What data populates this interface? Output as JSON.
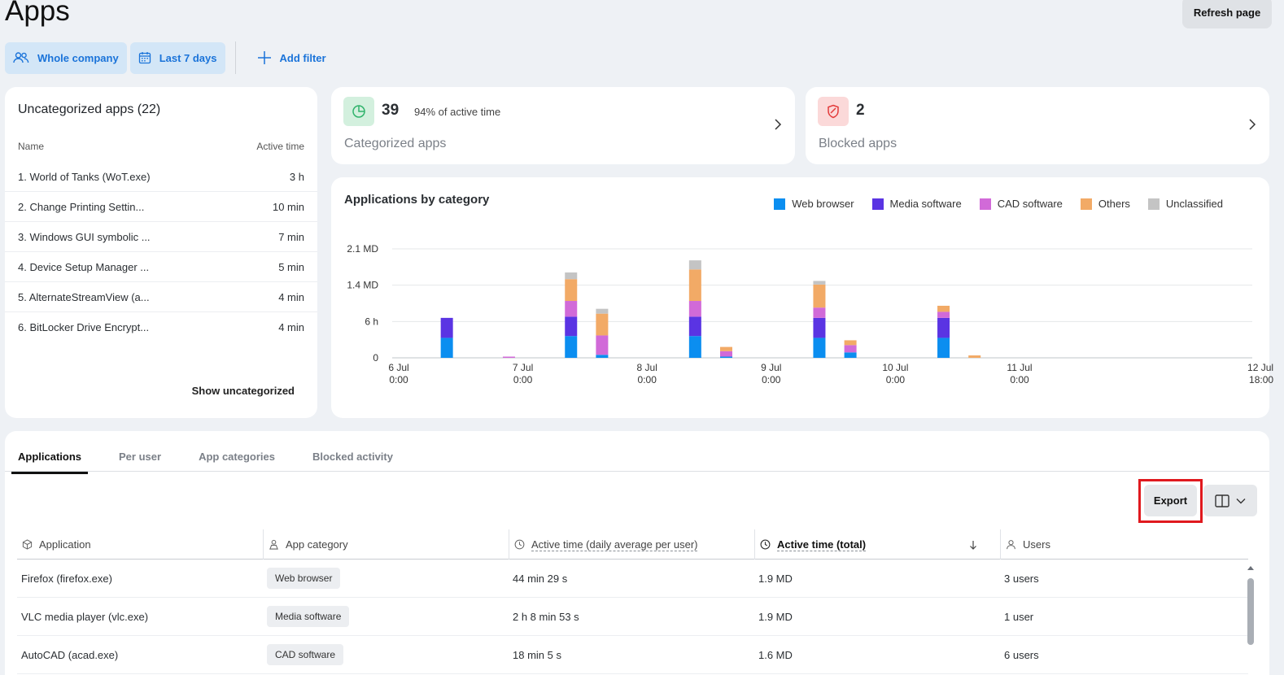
{
  "header": {
    "title": "Apps",
    "refresh_label": "Refresh page"
  },
  "filters": {
    "company_label": "Whole company",
    "period_label": "Last 7 days",
    "add_filter_label": "Add filter"
  },
  "uncategorized": {
    "title": "Uncategorized apps (22)",
    "col_name": "Name",
    "col_active": "Active time",
    "rows": [
      {
        "name": "1. World of Tanks (WoT.exe)",
        "time": "3 h"
      },
      {
        "name": "2. Change Printing Settin...",
        "time": "10 min"
      },
      {
        "name": "3. Windows GUI symbolic ...",
        "time": "7 min"
      },
      {
        "name": "4. Device Setup Manager ...",
        "time": "5 min"
      },
      {
        "name": "5. AlternateStreamView (a...",
        "time": "4 min"
      },
      {
        "name": "6. BitLocker Drive Encrypt...",
        "time": "4 min"
      }
    ],
    "show_label": "Show uncategorized"
  },
  "categorized": {
    "count": "39",
    "sub": "94% of active time",
    "label": "Categorized apps",
    "icon": "pie-chart-icon",
    "accent": "#2fb36b"
  },
  "blocked": {
    "count": "2",
    "label": "Blocked apps",
    "icon": "shield-icon",
    "accent": "#e33b3b"
  },
  "chart_data": {
    "type": "bar",
    "title": "Applications by category",
    "stacked": true,
    "legend_position": "top-right",
    "grid": true,
    "y_ticks": [
      "0",
      "6 h",
      "1.4 MD",
      "2.1 MD"
    ],
    "y_tick_hours": [
      0,
      6,
      12,
      18
    ],
    "ylim_hours": [
      0,
      18
    ],
    "x_ticks": [
      {
        "line1": "6 Jul",
        "line2": "0:00"
      },
      {
        "line1": "7 Jul",
        "line2": "0:00"
      },
      {
        "line1": "8 Jul",
        "line2": "0:00"
      },
      {
        "line1": "9 Jul",
        "line2": "0:00"
      },
      {
        "line1": "10 Jul",
        "line2": "0:00"
      },
      {
        "line1": "11 Jul",
        "line2": "0:00"
      },
      {
        "line1": "12 Jul",
        "line2": "18:00"
      }
    ],
    "x_tick_days": [
      0,
      1,
      2,
      3,
      4,
      5,
      6.75
    ],
    "series": [
      {
        "name": "Web browser",
        "color": "#0b8ef0"
      },
      {
        "name": "Media software",
        "color": "#5a34e3"
      },
      {
        "name": "CAD software",
        "color": "#d16ad8"
      },
      {
        "name": "Others",
        "color": "#f2aa66"
      },
      {
        "name": "Unclassified",
        "color": "#c4c4c4"
      }
    ],
    "bars": [
      {
        "day": 0.25,
        "values": [
          3.3,
          3.3,
          0,
          0,
          0
        ]
      },
      {
        "day": 0.75,
        "values": [
          0,
          0,
          0.2,
          0,
          0
        ]
      },
      {
        "day": 1.25,
        "values": [
          3.6,
          3.2,
          2.6,
          3.6,
          1.1
        ]
      },
      {
        "day": 1.5,
        "values": [
          0.5,
          0,
          3.2,
          3.6,
          0.8
        ]
      },
      {
        "day": 2.25,
        "values": [
          3.6,
          3.2,
          2.6,
          5.2,
          1.5
        ]
      },
      {
        "day": 2.5,
        "values": [
          0.2,
          0,
          0.9,
          0.7,
          0
        ]
      },
      {
        "day": 3.25,
        "values": [
          3.3,
          3.3,
          1.7,
          3.8,
          0.6
        ]
      },
      {
        "day": 3.5,
        "values": [
          0.9,
          0,
          1.2,
          0.8,
          0
        ]
      },
      {
        "day": 4.25,
        "values": [
          3.3,
          3.3,
          1.0,
          1.0,
          0
        ]
      },
      {
        "day": 4.5,
        "values": [
          0,
          0,
          0,
          0.4,
          0
        ]
      }
    ]
  },
  "tabs": [
    {
      "label": "Applications",
      "active": true
    },
    {
      "label": "Per user",
      "active": false
    },
    {
      "label": "App categories",
      "active": false
    },
    {
      "label": "Blocked activity",
      "active": false
    }
  ],
  "toolbar": {
    "export_label": "Export",
    "columns_icon": "columns-icon"
  },
  "table": {
    "headers": {
      "app": "Application",
      "category": "App category",
      "avg": "Active time (daily average per user)",
      "total": "Active time (total)",
      "users": "Users"
    },
    "rows": [
      {
        "app": "Firefox (firefox.exe)",
        "category": "Web browser",
        "avg": "44 min 29 s",
        "total": "1.9 MD",
        "users": "3 users"
      },
      {
        "app": "VLC media player (vlc.exe)",
        "category": "Media software",
        "avg": "2 h 8 min 53 s",
        "total": "1.9 MD",
        "users": "1 user"
      },
      {
        "app": "AutoCAD (acad.exe)",
        "category": "CAD software",
        "avg": "18 min 5 s",
        "total": "1.6 MD",
        "users": "6 users"
      }
    ]
  }
}
